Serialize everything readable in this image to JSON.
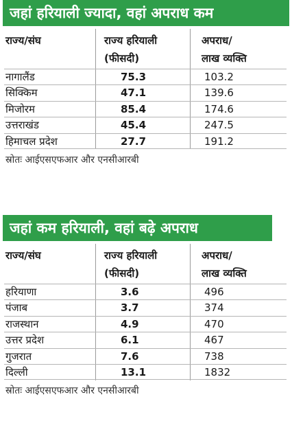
{
  "table1": {
    "title": "जहां हरियाली ज्यादा, वहां अपराध कम",
    "headers": {
      "state": "राज्य/संघ",
      "green_line1": "राज्य हरियाली",
      "green_line2": "(फीसदी)",
      "crime_line1": "अपराध/",
      "crime_line2": "लाख व्यक्ति"
    },
    "rows": [
      {
        "state": "नागालैंड",
        "green": "75.3",
        "crime": "103.2"
      },
      {
        "state": "सिक्किम",
        "green": "47.1",
        "crime": "139.6"
      },
      {
        "state": "मिजोरम",
        "green": "85.4",
        "crime": "174.6"
      },
      {
        "state": "उत्तराखंड",
        "green": "45.4",
        "crime": "247.5"
      },
      {
        "state": "हिमाचल प्रदेश",
        "green": "27.7",
        "crime": "191.2"
      }
    ],
    "source": "स्रोतः आईएसएफआर और एनसीआरबी"
  },
  "table2": {
    "title": "जहां कम हरियाली, वहां बढ़े अपराध",
    "headers": {
      "state": "राज्य/संघ",
      "green_line1": "राज्य हरियाली",
      "green_line2": "(फीसदी)",
      "crime_line1": "अपराध/",
      "crime_line2": "लाख व्यक्ति"
    },
    "rows": [
      {
        "state": "हरियाणा",
        "green": "3.6",
        "crime": "496"
      },
      {
        "state": "पंजाब",
        "green": "3.7",
        "crime": "374"
      },
      {
        "state": "राजस्थान",
        "green": "4.9",
        "crime": "470"
      },
      {
        "state": "उत्तर प्रदेश",
        "green": "6.1",
        "crime": "467"
      },
      {
        "state": "गुजरात",
        "green": "7.6",
        "crime": "738"
      },
      {
        "state": "दिल्ली",
        "green": "13.1",
        "crime": "1832"
      }
    ],
    "source": "स्रोतः आईएसएफआर और एनसीआरबी"
  },
  "colors": {
    "banner": "#2f9e4a"
  }
}
